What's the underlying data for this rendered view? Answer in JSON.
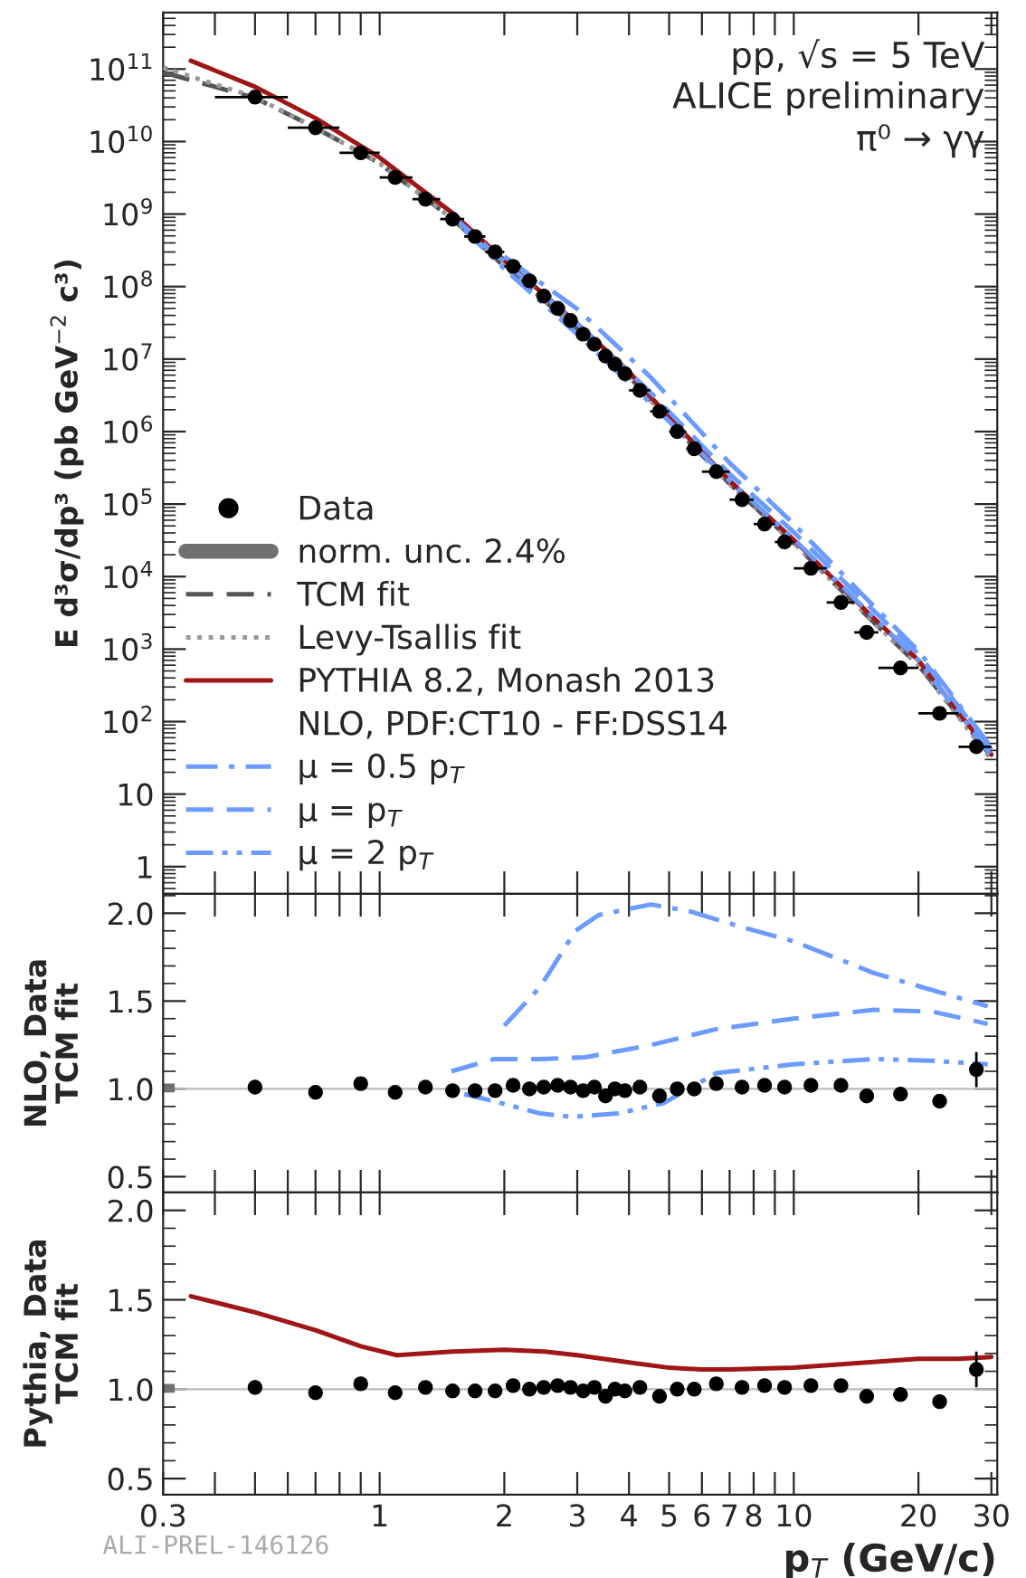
{
  "chart_data": [
    {
      "type": "line",
      "ylabel": "E d³σ/dp³ (pb GeV$^{−2}$ c³)",
      "log": "xy",
      "xlim": [
        0.3,
        31
      ],
      "ylim": [
        0.42,
        600000000000.0
      ],
      "xticks": [
        0.3,
        {
          "value": 0.4,
          "label": null
        },
        {
          "value": 0.5,
          "label": null
        },
        {
          "value": 0.6,
          "label": null
        },
        {
          "value": 0.7,
          "label": null
        },
        {
          "value": 0.8,
          "label": null
        },
        {
          "value": 0.9,
          "label": null
        },
        1,
        2,
        3,
        4,
        5,
        6,
        7,
        8,
        {
          "value": 9,
          "label": null
        },
        10,
        20,
        30
      ],
      "yticks": [
        1,
        10,
        {
          "value": 100,
          "label": "10$^{2}$"
        },
        {
          "value": 1000,
          "label": "10$^{3}$"
        },
        {
          "value": 10000,
          "label": "10$^{4}$"
        },
        {
          "value": 100000,
          "label": "10$^{5}$"
        },
        {
          "value": 1000000,
          "label": "10$^{6}$"
        },
        {
          "value": 10000000,
          "label": "10$^{7}$"
        },
        {
          "value": 100000000,
          "label": "10$^{8}$"
        },
        {
          "value": 1000000000,
          "label": "10$^{9}$"
        },
        {
          "value": 10000000000,
          "label": "10$^{10}$"
        },
        {
          "value": 100000000000,
          "label": "10$^{11}$"
        }
      ],
      "tick_labels": "y",
      "legend": "bottom left",
      "annotations": [
        "pp, √s = 5 TeV",
        "ALICE preliminary",
        "π⁰ → γγ"
      ],
      "series": [
        {
          "name": "Data",
          "type": "scatter",
          "marker": "circle",
          "color": "#000000",
          "x": [
            0.5,
            0.7,
            0.9,
            1.09,
            1.29,
            1.5,
            1.7,
            1.9,
            2.1,
            2.3,
            2.49,
            2.69,
            2.89,
            3.1,
            3.3,
            3.51,
            3.7,
            3.91,
            4.25,
            4.74,
            5.23,
            5.75,
            6.5,
            7.5,
            8.5,
            9.5,
            11.0,
            13.0,
            15.0,
            18.1,
            22.5,
            27.6
          ],
          "values": [
            41000000000.0,
            15500000000.0,
            7000000000.0,
            3200000000.0,
            1600000000.0,
            850000000.0,
            490000000.0,
            300000000.0,
            190000000.0,
            120000000.0,
            74000000.0,
            50000000.0,
            34000000.0,
            22000000.0,
            16000000.0,
            11000000.0,
            8500000.0,
            6300000.0,
            3700000.0,
            1900000.0,
            1000000.0,
            580000.0,
            280000.0,
            115000.0,
            53000.0,
            30000.0,
            13000.0,
            4400.0,
            1700.0,
            550,
            130,
            45
          ],
          "xerrors": [
            [
              0.4,
              0.6
            ],
            [
              0.6,
              0.8
            ],
            [
              0.8,
              1.0
            ],
            [
              1.0,
              1.2
            ],
            [
              1.2,
              1.4
            ],
            [
              1.4,
              1.6
            ],
            [
              1.6,
              1.8
            ],
            [
              1.8,
              2.0
            ],
            [
              2.0,
              2.2
            ],
            [
              2.2,
              2.4
            ],
            [
              2.4,
              2.6
            ],
            [
              2.6,
              2.8
            ],
            [
              2.8,
              3.0
            ],
            [
              3.0,
              3.2
            ],
            [
              3.2,
              3.4
            ],
            [
              3.4,
              3.6
            ],
            [
              3.6,
              3.8
            ],
            [
              3.8,
              4.0
            ],
            [
              4.0,
              4.5
            ],
            [
              4.5,
              5.0
            ],
            [
              5.0,
              5.5
            ],
            [
              5.5,
              6.0
            ],
            [
              6.0,
              7.0
            ],
            [
              7.0,
              8.0
            ],
            [
              8.0,
              9.0
            ],
            [
              9.0,
              10.0
            ],
            [
              10.0,
              12.0
            ],
            [
              12.0,
              14.0
            ],
            [
              14.0,
              16.0
            ],
            [
              16.0,
              20.0
            ],
            [
              20.0,
              25.0
            ],
            [
              25.0,
              30.0
            ]
          ]
        },
        {
          "name": "norm. unc. 2.4%",
          "type": "bar",
          "color": "#707070"
        },
        {
          "name": "TCM fit",
          "line_style": "dashed",
          "color": "#555555",
          "x": [
            0.3,
            0.5,
            0.7,
            1,
            1.5,
            2,
            3,
            4,
            5,
            7,
            10,
            15,
            20,
            31
          ],
          "values": [
            90000000000.0,
            40000000000.0,
            15500000000.0,
            5000000000.0,
            850000000.0,
            190000000.0,
            26000000.0,
            5800000.0,
            1400000.0,
            190000.0,
            29000.0,
            2900.0,
            600,
            26
          ]
        },
        {
          "name": "Levy-Tsallis fit",
          "line_style": "dotted",
          "color": "#999999",
          "x": [
            0.3,
            0.5,
            0.7,
            1,
            1.5,
            2,
            3,
            4,
            5,
            7,
            10,
            15,
            20,
            30
          ],
          "values": [
            105000000000.0,
            41000000000.0,
            15500000000.0,
            5000000000.0,
            850000000.0,
            190000000.0,
            26000000.0,
            5800000.0,
            1400000.0,
            190000.0,
            29000.0,
            2900.0,
            600,
            30
          ]
        },
        {
          "name": "PYTHIA 8.2, Monash 2013",
          "line_style": "solid",
          "color": "#a01515",
          "x": [
            0.35,
            0.5,
            0.7,
            1,
            1.5,
            2,
            3,
            4,
            5,
            7,
            10,
            15,
            20,
            30
          ],
          "values": [
            130000000000.0,
            57000000000.0,
            21000000000.0,
            6000000000.0,
            1030000000.0,
            230000000.0,
            31000000.0,
            6700000.0,
            1570000.0,
            210000.0,
            32000.0,
            3300.0,
            700,
            35
          ]
        },
        {
          "name": "NLO, PDF:CT10 - FF:DSS14",
          "color": null
        },
        {
          "name": "μ = 0.5 p$_{T}$",
          "line_style": "dashdot",
          "color": "#6b9bff",
          "x": [
            2,
            3,
            4.5,
            7,
            10,
            15,
            20,
            30
          ],
          "values": [
            260000000.0,
            49000000.0,
            5700000.0,
            370000.0,
            53000.0,
            4900.0,
            950,
            44
          ]
        },
        {
          "name": "μ = p$_{T}$",
          "line_style": "dashed",
          "color": "#6b9bff",
          "x": [
            1.5,
            2,
            3,
            4.5,
            7,
            10,
            15,
            20,
            30
          ],
          "values": [
            930000000.0,
            220000000.0,
            31000000.0,
            3500000.0,
            260000.0,
            41000.0,
            4200.0,
            860,
            41
          ]
        },
        {
          "name": "μ = 2 p$_{T}$",
          "line_style": "dashdotdot",
          "color": "#6b9bff",
          "x": [
            1.6,
            2,
            3,
            4.5,
            7,
            10,
            15,
            20,
            30
          ],
          "values": [
            610000000.0,
            175000000.0,
            22000000.0,
            2500000.0,
            210000.0,
            33000.0,
            3400.0,
            700,
            34
          ]
        }
      ]
    },
    {
      "type": "line",
      "ylabel": "NLO, Data\nTCM fit",
      "log": "x",
      "xlim": [
        0.3,
        31
      ],
      "ylim": [
        0.41,
        2.11
      ],
      "xticks": [
        0.3,
        {
          "value": 0.4,
          "label": null
        },
        {
          "value": 0.5,
          "label": null
        },
        {
          "value": 0.6,
          "label": null
        },
        {
          "value": 0.7,
          "label": null
        },
        {
          "value": 0.8,
          "label": null
        },
        {
          "value": 0.9,
          "label": null
        },
        1,
        2,
        3,
        4,
        5,
        6,
        7,
        8,
        {
          "value": 9,
          "label": null
        },
        10,
        20,
        30
      ],
      "yticks": [
        0.5,
        {
          "value": 1.0,
          "label": "1.0"
        },
        1.5,
        {
          "value": 2.0,
          "label": "2.0"
        }
      ],
      "tick_labels": "y",
      "ref_lines": [
        {
          "axis": "y",
          "value": 1.0,
          "color": "#bbbbbb"
        }
      ],
      "series": [
        {
          "type": "bar",
          "color": "#707070",
          "x": [
            0.3
          ],
          "base": [
            0.98
          ],
          "values": [
            0.05
          ]
        },
        {
          "line_style": "dashdot",
          "color": "#6b9bff",
          "x": [
            2.0,
            2.44,
            2.97,
            3.38,
            4.52,
            5.63,
            7.27,
            10,
            15.6,
            29.4
          ],
          "values": [
            1.36,
            1.58,
            1.9,
            1.99,
            2.05,
            2.01,
            1.93,
            1.84,
            1.66,
            1.47
          ]
        },
        {
          "line_style": "dashed",
          "color": "#6b9bff",
          "x": [
            1.49,
            1.89,
            2.44,
            3.14,
            4.52,
            6.5,
            10,
            15.6,
            21.6,
            29.4
          ],
          "values": [
            1.1,
            1.17,
            1.17,
            1.18,
            1.25,
            1.34,
            1.4,
            1.45,
            1.44,
            1.37
          ]
        },
        {
          "line_style": "dashdotdot",
          "color": "#6b9bff",
          "x": [
            1.6,
            1.89,
            2.44,
            2.92,
            3.77,
            4.86,
            6.5,
            10,
            15.6,
            21.6,
            29.4
          ],
          "values": [
            0.97,
            0.93,
            0.86,
            0.84,
            0.86,
            0.92,
            1.09,
            1.14,
            1.17,
            1.16,
            1.14
          ]
        },
        {
          "type": "scatter",
          "marker": "circle",
          "color": "#000000",
          "x": [
            0.5,
            0.7,
            0.9,
            1.09,
            1.29,
            1.5,
            1.7,
            1.9,
            2.1,
            2.3,
            2.49,
            2.69,
            2.89,
            3.1,
            3.3,
            3.51,
            3.7,
            3.91,
            4.25,
            4.74,
            5.23,
            5.75,
            6.5,
            7.5,
            8.5,
            9.5,
            11.0,
            13.0,
            15.0,
            18.1,
            22.5,
            27.6
          ],
          "values": [
            1.01,
            0.98,
            1.03,
            0.98,
            1.01,
            0.99,
            0.99,
            0.99,
            1.02,
            1.0,
            1.01,
            1.02,
            1.01,
            0.99,
            1.01,
            0.96,
            1.0,
            0.99,
            1.01,
            0.96,
            1.0,
            1.0,
            1.03,
            1.01,
            1.02,
            1.01,
            1.02,
            1.02,
            0.96,
            0.97,
            0.93,
            1.11
          ],
          "errors": [
            0.04,
            null,
            null,
            null,
            null,
            null,
            null,
            null,
            null,
            null,
            null,
            null,
            null,
            null,
            null,
            null,
            null,
            null,
            null,
            null,
            null,
            null,
            null,
            null,
            null,
            null,
            null,
            null,
            null,
            null,
            0.04,
            0.1
          ]
        }
      ]
    },
    {
      "type": "line",
      "ylabel": "Pythia, Data\nTCM fit",
      "xlabel": "p$_{T}$ (GeV/c)",
      "log": "x",
      "xlim": [
        0.3,
        31
      ],
      "ylim": [
        0.41,
        2.1
      ],
      "xticks": [
        0.3,
        {
          "value": 0.4,
          "label": null
        },
        {
          "value": 0.5,
          "label": null
        },
        {
          "value": 0.6,
          "label": null
        },
        {
          "value": 0.7,
          "label": null
        },
        {
          "value": 0.8,
          "label": null
        },
        {
          "value": 0.9,
          "label": null
        },
        1,
        2,
        3,
        4,
        5,
        6,
        7,
        8,
        {
          "value": 9,
          "label": null
        },
        10,
        20,
        30
      ],
      "yticks": [
        0.5,
        {
          "value": 1.0,
          "label": "1.0"
        },
        1.5,
        {
          "value": 2.0,
          "label": "2.0"
        }
      ],
      "ref_lines": [
        {
          "axis": "y",
          "value": 1.0,
          "color": "#bbbbbb"
        }
      ],
      "annotations": [
        "ALI-PREL-146126"
      ],
      "series": [
        {
          "type": "bar",
          "color": "#707070",
          "x": [
            0.3
          ],
          "base": [
            0.98
          ],
          "values": [
            0.05
          ]
        },
        {
          "line_style": "solid",
          "color": "#a01515",
          "x": [
            0.35,
            0.5,
            0.7,
            0.9,
            1.1,
            1.5,
            2,
            2.5,
            3,
            4,
            5,
            6,
            7,
            10,
            15,
            20,
            25,
            30
          ],
          "values": [
            1.52,
            1.43,
            1.33,
            1.24,
            1.19,
            1.21,
            1.22,
            1.21,
            1.19,
            1.15,
            1.12,
            1.11,
            1.11,
            1.12,
            1.15,
            1.17,
            1.17,
            1.18
          ]
        },
        {
          "type": "scatter",
          "marker": "circle",
          "color": "#000000",
          "x": [
            0.5,
            0.7,
            0.9,
            1.09,
            1.29,
            1.5,
            1.7,
            1.9,
            2.1,
            2.3,
            2.49,
            2.69,
            2.89,
            3.1,
            3.3,
            3.51,
            3.7,
            3.91,
            4.25,
            4.74,
            5.23,
            5.75,
            6.5,
            7.5,
            8.5,
            9.5,
            11.0,
            13.0,
            15.0,
            18.1,
            22.5,
            27.6
          ],
          "values": [
            1.01,
            0.98,
            1.03,
            0.98,
            1.01,
            0.99,
            0.99,
            0.99,
            1.02,
            1.0,
            1.01,
            1.02,
            1.01,
            0.99,
            1.01,
            0.96,
            1.0,
            0.99,
            1.01,
            0.96,
            1.0,
            1.0,
            1.03,
            1.01,
            1.02,
            1.01,
            1.02,
            1.02,
            0.96,
            0.97,
            0.93,
            1.11
          ],
          "errors": [
            0.04,
            null,
            null,
            null,
            null,
            null,
            null,
            null,
            null,
            null,
            null,
            null,
            null,
            null,
            null,
            null,
            null,
            null,
            null,
            null,
            null,
            null,
            null,
            null,
            null,
            null,
            null,
            null,
            null,
            null,
            0.04,
            0.1
          ]
        }
      ]
    }
  ]
}
